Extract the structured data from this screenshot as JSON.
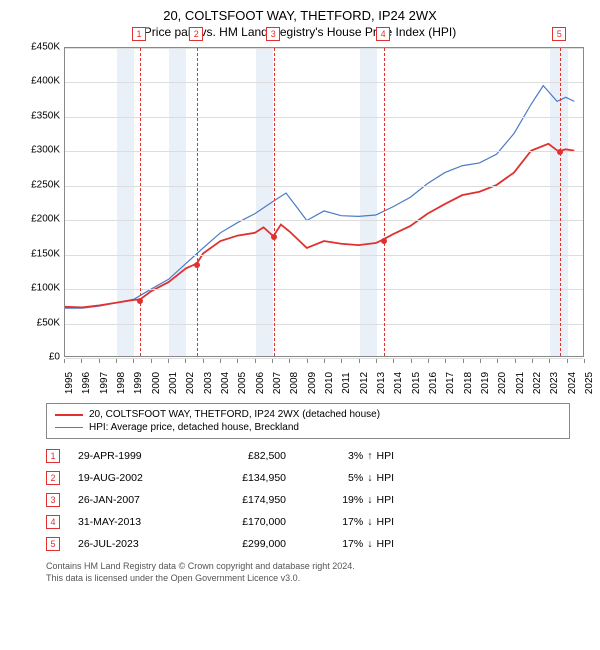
{
  "title": {
    "main": "20, COLTSFOOT WAY, THETFORD, IP24 2WX",
    "sub": "Price paid vs. HM Land Registry's House Price Index (HPI)"
  },
  "chart": {
    "type": "line",
    "x_start_year": 1995,
    "x_end_year": 2025,
    "x_tick_step": 1,
    "ylim": [
      0,
      450000
    ],
    "ytick_step": 50000,
    "ytick_prefix": "£",
    "ytick_suffix": "K",
    "background_color": "#ffffff",
    "grid_color": "#dddddd",
    "band_color": "#eaf0f8",
    "axis_color": "#888888",
    "series": [
      {
        "name": "price_paid",
        "color": "#e03030",
        "width": 1.8,
        "points": [
          [
            1995.0,
            72000
          ],
          [
            1996.0,
            71000
          ],
          [
            1997.0,
            74000
          ],
          [
            1998.0,
            78000
          ],
          [
            1999.0,
            82000
          ],
          [
            1999.33,
            82500
          ],
          [
            2000.0,
            95000
          ],
          [
            2001.0,
            108000
          ],
          [
            2002.0,
            128000
          ],
          [
            2002.63,
            134950
          ],
          [
            2003.0,
            150000
          ],
          [
            2004.0,
            168000
          ],
          [
            2005.0,
            176000
          ],
          [
            2006.0,
            180000
          ],
          [
            2006.5,
            188000
          ],
          [
            2007.07,
            174950
          ],
          [
            2007.5,
            192000
          ],
          [
            2008.0,
            182000
          ],
          [
            2008.7,
            165000
          ],
          [
            2009.0,
            158000
          ],
          [
            2010.0,
            168000
          ],
          [
            2011.0,
            164000
          ],
          [
            2012.0,
            162000
          ],
          [
            2013.0,
            165000
          ],
          [
            2013.41,
            170000
          ],
          [
            2014.0,
            178000
          ],
          [
            2015.0,
            190000
          ],
          [
            2016.0,
            208000
          ],
          [
            2017.0,
            222000
          ],
          [
            2018.0,
            235000
          ],
          [
            2019.0,
            240000
          ],
          [
            2020.0,
            250000
          ],
          [
            2021.0,
            268000
          ],
          [
            2022.0,
            300000
          ],
          [
            2023.0,
            310000
          ],
          [
            2023.57,
            299000
          ],
          [
            2024.0,
            302000
          ],
          [
            2024.5,
            300000
          ]
        ]
      },
      {
        "name": "hpi",
        "color": "#4a7ac8",
        "width": 1.2,
        "points": [
          [
            1995.0,
            70000
          ],
          [
            1996.0,
            70000
          ],
          [
            1997.0,
            73000
          ],
          [
            1998.0,
            78000
          ],
          [
            1999.0,
            83000
          ],
          [
            2000.0,
            98000
          ],
          [
            2001.0,
            112000
          ],
          [
            2002.0,
            135000
          ],
          [
            2003.0,
            158000
          ],
          [
            2004.0,
            180000
          ],
          [
            2005.0,
            195000
          ],
          [
            2006.0,
            208000
          ],
          [
            2007.0,
            225000
          ],
          [
            2007.8,
            238000
          ],
          [
            2008.5,
            215000
          ],
          [
            2009.0,
            198000
          ],
          [
            2010.0,
            212000
          ],
          [
            2011.0,
            205000
          ],
          [
            2012.0,
            204000
          ],
          [
            2013.0,
            206000
          ],
          [
            2014.0,
            218000
          ],
          [
            2015.0,
            232000
          ],
          [
            2016.0,
            252000
          ],
          [
            2017.0,
            268000
          ],
          [
            2018.0,
            278000
          ],
          [
            2019.0,
            282000
          ],
          [
            2020.0,
            295000
          ],
          [
            2021.0,
            325000
          ],
          [
            2022.0,
            368000
          ],
          [
            2022.7,
            395000
          ],
          [
            2023.5,
            372000
          ],
          [
            2024.0,
            378000
          ],
          [
            2024.5,
            372000
          ]
        ]
      }
    ],
    "markers": [
      {
        "n": "1",
        "year": 1999.33,
        "price": 82500
      },
      {
        "n": "2",
        "year": 2002.63,
        "price": 134950
      },
      {
        "n": "3",
        "year": 2007.07,
        "price": 174950
      },
      {
        "n": "4",
        "year": 2013.41,
        "price": 170000
      },
      {
        "n": "5",
        "year": 2023.57,
        "price": 299000
      }
    ],
    "bands": [
      [
        1998,
        1999
      ],
      [
        2001,
        2002
      ],
      [
        2006,
        2007
      ],
      [
        2012,
        2013
      ],
      [
        2023,
        2024
      ]
    ]
  },
  "legend": [
    {
      "color": "#e03030",
      "width": 2,
      "label": "20, COLTSFOOT WAY, THETFORD, IP24 2WX (detached house)"
    },
    {
      "color": "#4a7ac8",
      "width": 1,
      "label": "HPI: Average price, detached house, Breckland"
    }
  ],
  "transactions": [
    {
      "n": "1",
      "date": "29-APR-1999",
      "price": "£82,500",
      "delta": "3%",
      "arrow": "↑",
      "suffix": "HPI"
    },
    {
      "n": "2",
      "date": "19-AUG-2002",
      "price": "£134,950",
      "delta": "5%",
      "arrow": "↓",
      "suffix": "HPI"
    },
    {
      "n": "3",
      "date": "26-JAN-2007",
      "price": "£174,950",
      "delta": "19%",
      "arrow": "↓",
      "suffix": "HPI"
    },
    {
      "n": "4",
      "date": "31-MAY-2013",
      "price": "£170,000",
      "delta": "17%",
      "arrow": "↓",
      "suffix": "HPI"
    },
    {
      "n": "5",
      "date": "26-JUL-2023",
      "price": "£299,000",
      "delta": "17%",
      "arrow": "↓",
      "suffix": "HPI"
    }
  ],
  "footer": {
    "line1": "Contains HM Land Registry data © Crown copyright and database right 2024.",
    "line2": "This data is licensed under the Open Government Licence v3.0."
  }
}
